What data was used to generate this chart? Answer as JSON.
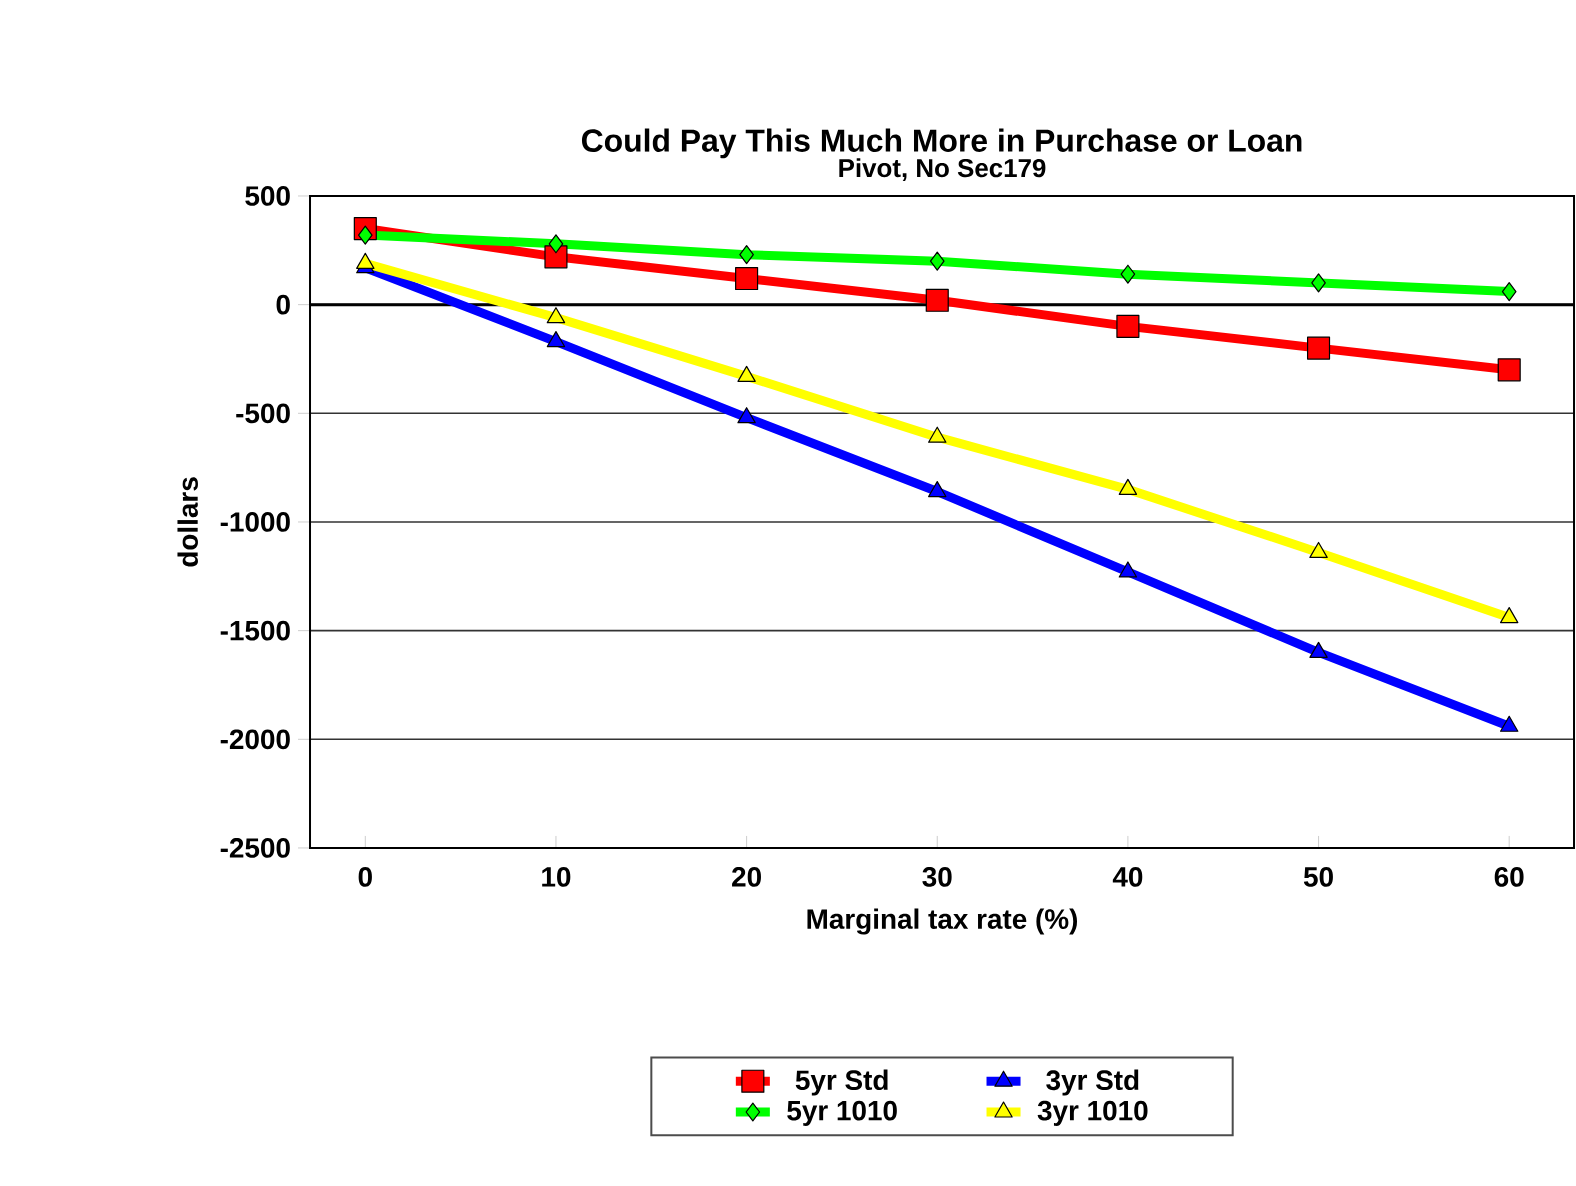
{
  "chart_data": {
    "type": "line",
    "title": "Could Pay This Much More in Purchase or Loan",
    "subtitle": "Pivot, No Sec179",
    "xlabel": "Marginal tax rate (%)",
    "ylabel": "dollars",
    "categories": [
      "0",
      "10",
      "20",
      "30",
      "40",
      "50",
      "60"
    ],
    "series": [
      {
        "name": "5yr Std",
        "color": "#ff0000",
        "marker": "square",
        "values": [
          350,
          220,
          120,
          20,
          -100,
          -200,
          -300
        ]
      },
      {
        "name": "3yr Std",
        "color": "#0000ff",
        "marker": "triangle",
        "values": [
          170,
          -170,
          -520,
          -860,
          -1230,
          -1600,
          -1940
        ]
      },
      {
        "name": "5yr 1010",
        "color": "#00ff00",
        "marker": "diamond",
        "values": [
          320,
          280,
          230,
          200,
          140,
          100,
          60
        ]
      },
      {
        "name": "3yr 1010",
        "color": "#ffff00",
        "marker": "triangle",
        "values": [
          190,
          -60,
          -330,
          -610,
          -850,
          -1140,
          -1440
        ]
      }
    ],
    "ylim": [
      -2500,
      500
    ],
    "yticks": [
      -2500,
      -2000,
      -1500,
      -1000,
      -500,
      0,
      500
    ],
    "grid": "y",
    "legend": "bottom",
    "line_style": "solid"
  }
}
